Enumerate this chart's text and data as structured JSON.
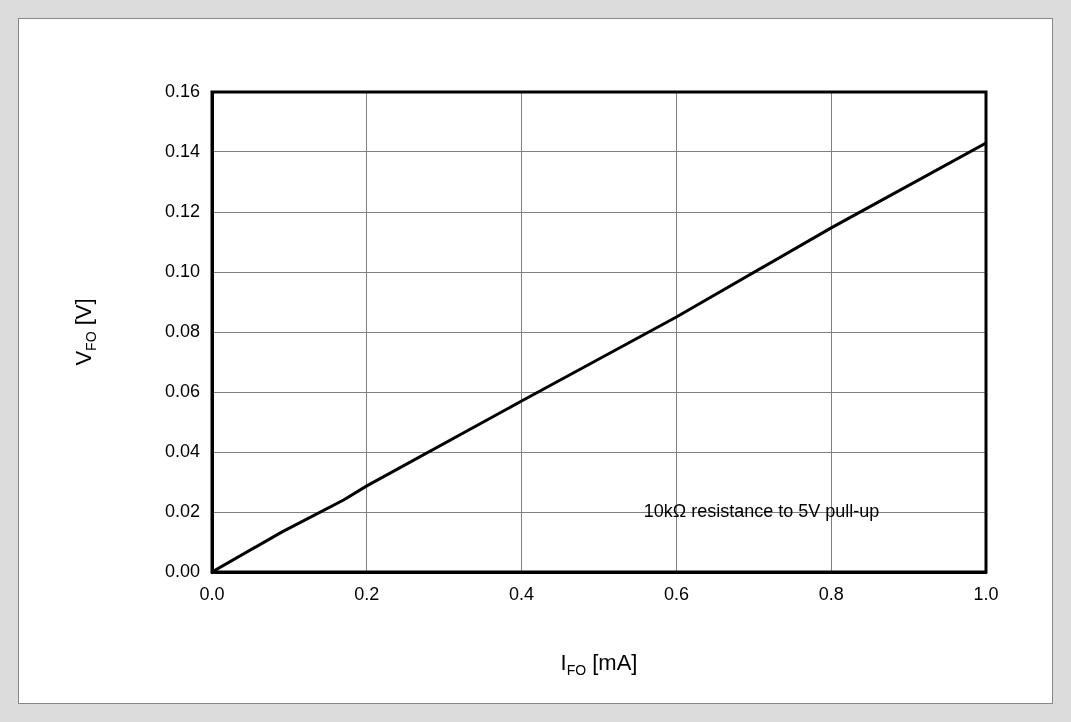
{
  "chart_data": {
    "type": "line",
    "xlabel": "I$_{FO}$ [mA]",
    "ylabel": "V$_{FO}$ [V]",
    "x": [
      0,
      0.09,
      0.17,
      0.2,
      0.4,
      0.6,
      0.8,
      1.0
    ],
    "series": [
      {
        "color": "#000000",
        "values": [
          0,
          0.0133,
          0.024,
          0.0287,
          0.057,
          0.085,
          0.1147,
          0.143
        ]
      }
    ],
    "xlim": [
      0,
      1
    ],
    "xticks": [
      {
        "value": 0,
        "label": "0.0"
      },
      {
        "value": 0.2,
        "label": "0.2"
      },
      {
        "value": 0.4,
        "label": "0.4"
      },
      {
        "value": 0.6,
        "label": "0.6"
      },
      {
        "value": 0.8,
        "label": "0.8"
      },
      {
        "value": 1,
        "label": "1.0"
      }
    ],
    "ylim": [
      0,
      0.16
    ],
    "yticks": [
      {
        "value": 0,
        "label": "0.00"
      },
      {
        "value": 0.02,
        "label": "0.02"
      },
      {
        "value": 0.04,
        "label": "0.04"
      },
      {
        "value": 0.06,
        "label": "0.06"
      },
      {
        "value": 0.08,
        "label": "0.08"
      },
      {
        "value": 0.1,
        "label": "0.10"
      },
      {
        "value": 0.12,
        "label": "0.12"
      },
      {
        "value": 0.14,
        "label": "0.14"
      },
      {
        "value": 0.16,
        "label": "0.16"
      }
    ],
    "grid": true,
    "legend": false,
    "marker": "none",
    "line_style": "solid",
    "annotations": [
      "10kΩ resistance to 5V pull-up"
    ]
  }
}
